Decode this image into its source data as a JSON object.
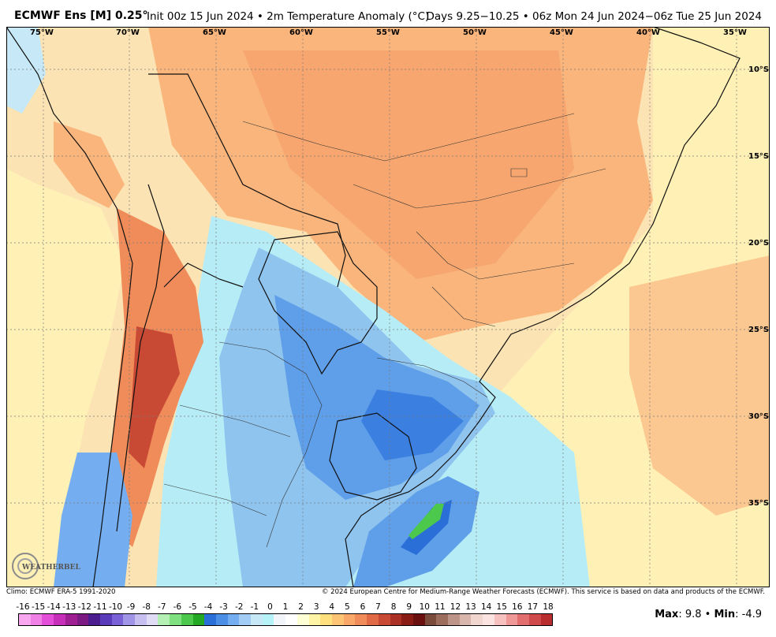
{
  "header": {
    "title_main": "ECMWF Ens [M] 0.25°",
    "title_sub": "Init 00z 15 Jun 2024 • 2m Temperature Anomaly (°C)",
    "title_right": "Days 9.25−10.25 • 06z Mon 24 Jun 2024−06z Tue 25 Jun 2024"
  },
  "map": {
    "lon_labels": [
      "75°W",
      "70°W",
      "65°W",
      "60°W",
      "55°W",
      "50°W",
      "45°W",
      "40°W",
      "35°W"
    ],
    "lat_labels": [
      "10°S",
      "15°S",
      "20°S",
      "25°S",
      "30°S",
      "35°S"
    ],
    "logo_text": "WEATHERBELL"
  },
  "footer": {
    "climo": "Climo: ECMWF ERA-5 1991-2020",
    "copyright": "© 2024 European Centre for Medium-Range Weather Forecasts (ECMWF). This service is based on data and products of the ECMWF."
  },
  "colorbar": {
    "labels": [
      "-16",
      "-15",
      "-14",
      "-13",
      "-12",
      "-11",
      "-10",
      "-9",
      "-8",
      "-7",
      "-6",
      "-5",
      "-4",
      "-3",
      "-2",
      "-1",
      "0",
      "1",
      "2",
      "3",
      "4",
      "5",
      "6",
      "7",
      "8",
      "9",
      "10",
      "11",
      "12",
      "13",
      "14",
      "15",
      "16",
      "17",
      "18"
    ],
    "colors": [
      "#f9a8ef",
      "#f07fe6",
      "#e34fd8",
      "#c62fb8",
      "#9e1f92",
      "#7a1a82",
      "#4c1d8e",
      "#5a3bb9",
      "#7a62d6",
      "#a095e6",
      "#c6bff0",
      "#e0dcf6",
      "#b4f0b4",
      "#7fe07f",
      "#4cc94c",
      "#22a822",
      "#2a6fd8",
      "#4a8ee6",
      "#74aef0",
      "#a3ccf5",
      "#c7e9f7",
      "#b6f3f8",
      "#f2f6fb",
      "#ffffff",
      "#ffffd6",
      "#fff3a6",
      "#ffe07f",
      "#fcc474",
      "#f9a86a",
      "#f08c5a",
      "#e06a46",
      "#c94a34",
      "#aa2f24",
      "#8a1c16",
      "#6a100e",
      "#7a4a3a",
      "#9c6c5c",
      "#bd9488",
      "#d9b6ac",
      "#f1d6cf",
      "#fae3e0",
      "#f6c1bf",
      "#ee9898",
      "#e26e6e",
      "#cf4a4a",
      "#b82e2e"
    ]
  },
  "stats": {
    "max_label": "Max",
    "max_value": ": 9.8 •",
    "min_label": "Min",
    "min_value": ": -4.9"
  }
}
